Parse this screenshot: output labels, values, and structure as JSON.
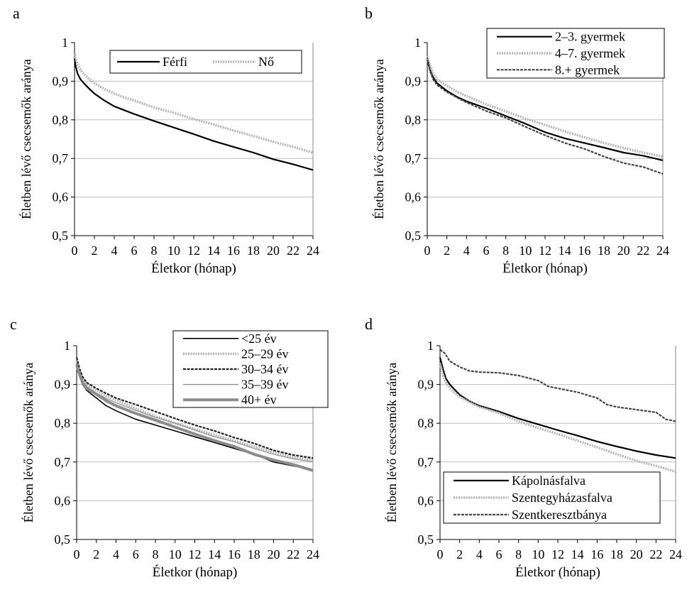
{
  "chart_data": [
    {
      "panel": "a",
      "type": "line",
      "xlabel": "Életkor (hónap)",
      "ylabel": "Életben lévő csecsemők aránya",
      "xlim": [
        0,
        24
      ],
      "ylim": [
        0.5,
        1
      ],
      "xticks": [
        "0",
        "2",
        "4",
        "6",
        "8",
        "10",
        "12",
        "14",
        "16",
        "18",
        "20",
        "22",
        "24"
      ],
      "yticks": [
        "0,5",
        "0,6",
        "0,7",
        "0,8",
        "0,9",
        "1"
      ],
      "grid": "horizontal",
      "legend_position": "top-right",
      "legend_columns": 2,
      "series": [
        {
          "name": "Férfi",
          "color": "#000000",
          "dash": "solid",
          "width": 2.2,
          "x": [
            0,
            0.1,
            0.3,
            0.6,
            1,
            1.5,
            2,
            3,
            4,
            5,
            6,
            8,
            10,
            12,
            14,
            16,
            18,
            20,
            22,
            24
          ],
          "y": [
            0.96,
            0.94,
            0.92,
            0.905,
            0.893,
            0.88,
            0.868,
            0.85,
            0.835,
            0.825,
            0.815,
            0.797,
            0.78,
            0.763,
            0.745,
            0.73,
            0.715,
            0.698,
            0.685,
            0.67
          ]
        },
        {
          "name": "Nő",
          "color": "#b4b4b4",
          "dash": "dotted",
          "width": 3.5,
          "x": [
            0,
            0.1,
            0.3,
            0.6,
            1,
            1.5,
            2,
            3,
            4,
            5,
            6,
            8,
            10,
            12,
            14,
            16,
            18,
            20,
            22,
            24
          ],
          "y": [
            0.975,
            0.96,
            0.945,
            0.93,
            0.917,
            0.905,
            0.895,
            0.88,
            0.868,
            0.858,
            0.85,
            0.832,
            0.818,
            0.802,
            0.788,
            0.772,
            0.758,
            0.743,
            0.73,
            0.715
          ]
        }
      ]
    },
    {
      "panel": "b",
      "type": "line",
      "xlabel": "Életkor (hónap)",
      "ylabel": "Életben lévő csecsemők aránya",
      "xlim": [
        0,
        24
      ],
      "ylim": [
        0.5,
        1
      ],
      "xticks": [
        "0",
        "2",
        "4",
        "6",
        "8",
        "10",
        "12",
        "14",
        "16",
        "18",
        "20",
        "22",
        "24"
      ],
      "yticks": [
        "0,5",
        "0,6",
        "0,7",
        "0,8",
        "0,9",
        "1"
      ],
      "grid": "horizontal",
      "legend_position": "top-right-outside",
      "legend_columns": 1,
      "series": [
        {
          "name": "2–3. gyermek",
          "color": "#000000",
          "dash": "solid",
          "width": 2.2,
          "x": [
            0,
            0.3,
            0.6,
            1,
            2,
            3,
            4,
            6,
            8,
            10,
            12,
            14,
            16,
            18,
            20,
            22,
            24
          ],
          "y": [
            0.96,
            0.93,
            0.91,
            0.895,
            0.875,
            0.86,
            0.848,
            0.83,
            0.81,
            0.79,
            0.768,
            0.752,
            0.74,
            0.728,
            0.715,
            0.707,
            0.695
          ]
        },
        {
          "name": "4–7. gyermek",
          "color": "#b4b4b4",
          "dash": "dotted",
          "width": 3.5,
          "x": [
            0,
            0.3,
            0.6,
            1,
            2,
            3,
            4,
            6,
            8,
            10,
            12,
            14,
            16,
            18,
            20,
            22,
            24
          ],
          "y": [
            0.965,
            0.94,
            0.92,
            0.905,
            0.888,
            0.873,
            0.862,
            0.84,
            0.822,
            0.803,
            0.787,
            0.77,
            0.755,
            0.74,
            0.727,
            0.715,
            0.705
          ]
        },
        {
          "name": "8.+ gyermek",
          "color": "#444444",
          "dash": "dashed",
          "width": 2.2,
          "x": [
            0,
            0.3,
            0.6,
            1,
            2,
            3,
            4,
            6,
            8,
            10,
            12,
            14,
            16,
            18,
            20,
            22,
            24
          ],
          "y": [
            0.955,
            0.925,
            0.905,
            0.89,
            0.872,
            0.858,
            0.845,
            0.823,
            0.805,
            0.782,
            0.76,
            0.74,
            0.725,
            0.705,
            0.688,
            0.678,
            0.66
          ]
        }
      ]
    },
    {
      "panel": "c",
      "type": "line",
      "xlabel": "Életkor (hónap)",
      "ylabel": "Életben lévő csecsemők aránya",
      "xlim": [
        0,
        24
      ],
      "ylim": [
        0.5,
        1
      ],
      "xticks": [
        "0",
        "2",
        "4",
        "6",
        "8",
        "10",
        "12",
        "14",
        "16",
        "18",
        "20",
        "22",
        "24"
      ],
      "yticks": [
        "0,5",
        "0,6",
        "0,7",
        "0,8",
        "0,9",
        "1"
      ],
      "grid": "horizontal",
      "legend_position": "top-right-outside",
      "legend_columns": 1,
      "series": [
        {
          "name": "<25 év",
          "color": "#000000",
          "dash": "solid",
          "width": 1.6,
          "x": [
            0,
            0.3,
            0.6,
            1,
            2,
            3,
            4,
            6,
            8,
            10,
            12,
            14,
            16,
            18,
            20,
            22,
            24
          ],
          "y": [
            0.95,
            0.92,
            0.9,
            0.885,
            0.865,
            0.845,
            0.832,
            0.81,
            0.795,
            0.78,
            0.765,
            0.75,
            0.735,
            0.72,
            0.7,
            0.69,
            0.68
          ]
        },
        {
          "name": "25–29 év",
          "color": "#b4b4b4",
          "dash": "dotted",
          "width": 3.5,
          "x": [
            0,
            0.3,
            0.6,
            1,
            2,
            3,
            4,
            6,
            8,
            10,
            12,
            14,
            16,
            18,
            20,
            22,
            24
          ],
          "y": [
            0.965,
            0.935,
            0.915,
            0.9,
            0.885,
            0.87,
            0.86,
            0.838,
            0.818,
            0.8,
            0.785,
            0.77,
            0.755,
            0.74,
            0.725,
            0.712,
            0.705
          ]
        },
        {
          "name": "30–34 év",
          "color": "#222222",
          "dash": "dashed",
          "width": 2.2,
          "x": [
            0,
            0.3,
            0.6,
            1,
            2,
            3,
            4,
            6,
            8,
            10,
            12,
            14,
            16,
            18,
            20,
            22,
            24
          ],
          "y": [
            0.97,
            0.94,
            0.92,
            0.905,
            0.89,
            0.877,
            0.865,
            0.848,
            0.83,
            0.812,
            0.795,
            0.78,
            0.763,
            0.748,
            0.73,
            0.718,
            0.71
          ]
        },
        {
          "name": "35–39 év",
          "color": "#8c8c8c",
          "dash": "solid",
          "width": 1.2,
          "x": [
            0,
            0.3,
            0.6,
            1,
            2,
            3,
            4,
            6,
            8,
            10,
            12,
            14,
            16,
            18,
            20,
            22,
            24
          ],
          "y": [
            0.96,
            0.93,
            0.91,
            0.895,
            0.878,
            0.864,
            0.853,
            0.833,
            0.815,
            0.8,
            0.782,
            0.765,
            0.752,
            0.735,
            0.72,
            0.708,
            0.7
          ]
        },
        {
          "name": "40+ év",
          "color": "#8c8c8c",
          "dash": "solid",
          "width": 4,
          "x": [
            0,
            0.3,
            0.6,
            1,
            2,
            3,
            4,
            6,
            8,
            10,
            12,
            14,
            16,
            18,
            20,
            22,
            24
          ],
          "y": [
            0.95,
            0.925,
            0.905,
            0.89,
            0.875,
            0.858,
            0.845,
            0.825,
            0.808,
            0.79,
            0.772,
            0.755,
            0.74,
            0.72,
            0.705,
            0.693,
            0.678
          ]
        }
      ]
    },
    {
      "panel": "d",
      "type": "line",
      "xlabel": "Életkor (hónap)",
      "ylabel": "Életben lévő csecsemők aránya",
      "xlim": [
        0,
        24
      ],
      "ylim": [
        0.5,
        1
      ],
      "xticks": [
        "0",
        "2",
        "4",
        "6",
        "8",
        "10",
        "12",
        "14",
        "16",
        "18",
        "20",
        "22",
        "24"
      ],
      "yticks": [
        "0,5",
        "0,6",
        "0,7",
        "0,8",
        "0,9",
        "1"
      ],
      "grid": "horizontal",
      "legend_position": "bottom-left",
      "legend_columns": 1,
      "series": [
        {
          "name": "Kápolnásfalva",
          "color": "#000000",
          "dash": "solid",
          "width": 2.2,
          "x": [
            0,
            0.3,
            0.6,
            1,
            2,
            3,
            4,
            6,
            8,
            10,
            12,
            14,
            16,
            18,
            20,
            22,
            24
          ],
          "y": [
            0.97,
            0.94,
            0.915,
            0.9,
            0.873,
            0.857,
            0.845,
            0.83,
            0.812,
            0.797,
            0.782,
            0.768,
            0.753,
            0.74,
            0.728,
            0.718,
            0.71
          ]
        },
        {
          "name": "Szentegyházasfalva",
          "color": "#b4b4b4",
          "dash": "dotted",
          "width": 3.5,
          "x": [
            0,
            0.3,
            0.6,
            1,
            2,
            3,
            4,
            6,
            8,
            10,
            12,
            14,
            16,
            18,
            20,
            22,
            24
          ],
          "y": [
            0.955,
            0.925,
            0.905,
            0.89,
            0.868,
            0.855,
            0.842,
            0.826,
            0.805,
            0.788,
            0.772,
            0.755,
            0.738,
            0.72,
            0.703,
            0.69,
            0.675
          ]
        },
        {
          "name": "Szentkeresztbánya",
          "color": "#444444",
          "dash": "dashed",
          "width": 2.2,
          "x": [
            0,
            0.5,
            1,
            2,
            3,
            4,
            6,
            8,
            10,
            11,
            12,
            14,
            16,
            17,
            18,
            20,
            22,
            23,
            24
          ],
          "y": [
            0.99,
            0.98,
            0.96,
            0.945,
            0.935,
            0.932,
            0.93,
            0.923,
            0.91,
            0.895,
            0.89,
            0.88,
            0.865,
            0.848,
            0.842,
            0.835,
            0.828,
            0.81,
            0.805
          ]
        }
      ]
    }
  ]
}
